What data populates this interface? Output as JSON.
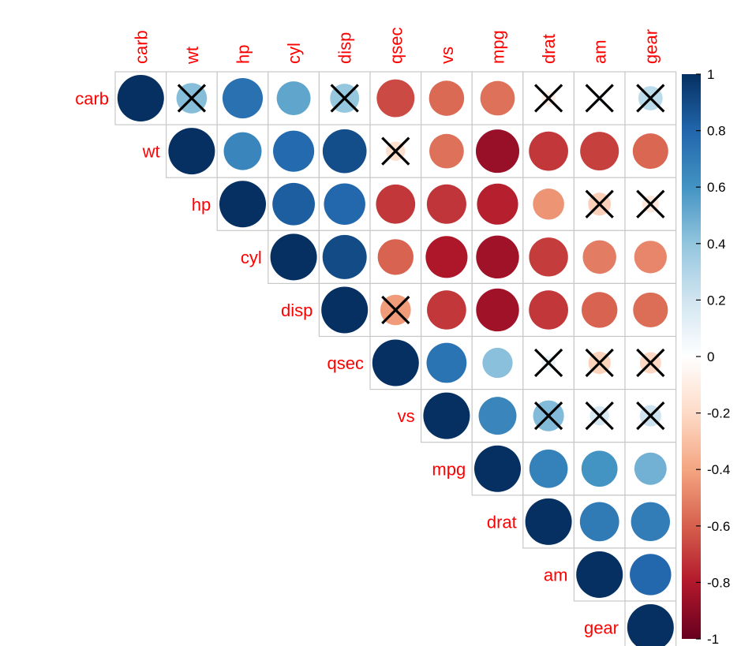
{
  "colors": {
    "label_color": "#ff0000",
    "cell_border": "#c8c8c8",
    "cross_color": "#000000",
    "palette": [
      "#67001f",
      "#b2182b",
      "#d6604d",
      "#f4a582",
      "#fddbc7",
      "#ffffff",
      "#d1e5f0",
      "#92c5de",
      "#4393c3",
      "#2166ac",
      "#053061"
    ]
  },
  "chart_data": {
    "type": "heatmap",
    "style": "upper-triangle correlation circles",
    "variables": [
      "carb",
      "wt",
      "hp",
      "cyl",
      "disp",
      "qsec",
      "vs",
      "mpg",
      "drat",
      "am",
      "gear"
    ],
    "correlations": [
      [
        1.0,
        0.43,
        0.75,
        0.53,
        0.39,
        -0.66,
        -0.57,
        -0.55,
        -0.09,
        0.06,
        0.27
      ],
      [
        null,
        1.0,
        0.66,
        0.78,
        0.89,
        -0.17,
        -0.55,
        -0.87,
        -0.71,
        -0.69,
        -0.58
      ],
      [
        null,
        null,
        1.0,
        0.83,
        0.79,
        -0.71,
        -0.72,
        -0.78,
        -0.45,
        -0.24,
        -0.13
      ],
      [
        null,
        null,
        null,
        1.0,
        0.9,
        -0.59,
        -0.81,
        -0.85,
        -0.7,
        -0.52,
        -0.49
      ],
      [
        null,
        null,
        null,
        null,
        1.0,
        -0.43,
        -0.71,
        -0.85,
        -0.71,
        -0.59,
        -0.56
      ],
      [
        null,
        null,
        null,
        null,
        null,
        1.0,
        0.74,
        0.42,
        0.09,
        -0.23,
        -0.21
      ],
      [
        null,
        null,
        null,
        null,
        null,
        null,
        1.0,
        0.66,
        0.44,
        0.17,
        0.21
      ],
      [
        null,
        null,
        null,
        null,
        null,
        null,
        null,
        1.0,
        0.68,
        0.6,
        0.48
      ],
      [
        null,
        null,
        null,
        null,
        null,
        null,
        null,
        null,
        1.0,
        0.71,
        0.7
      ],
      [
        null,
        null,
        null,
        null,
        null,
        null,
        null,
        null,
        null,
        1.0,
        0.79
      ],
      [
        null,
        null,
        null,
        null,
        null,
        null,
        null,
        null,
        null,
        null,
        1.0
      ]
    ],
    "insignificant": [
      [
        0,
        1
      ],
      [
        0,
        4
      ],
      [
        0,
        8
      ],
      [
        0,
        9
      ],
      [
        0,
        10
      ],
      [
        1,
        5
      ],
      [
        2,
        9
      ],
      [
        2,
        10
      ],
      [
        4,
        5
      ],
      [
        5,
        8
      ],
      [
        5,
        9
      ],
      [
        5,
        10
      ],
      [
        6,
        8
      ],
      [
        6,
        9
      ],
      [
        6,
        10
      ]
    ],
    "colorbar": {
      "range": [
        -1,
        1
      ],
      "ticks": [
        "1",
        "0.8",
        "0.6",
        "0.4",
        "0.2",
        "0",
        "-0.2",
        "-0.4",
        "-0.6",
        "-0.8",
        "-1"
      ]
    },
    "xlabel": "",
    "ylabel": ""
  }
}
